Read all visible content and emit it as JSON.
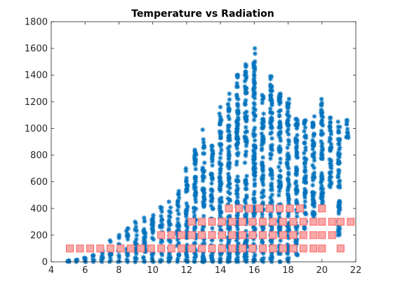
{
  "chart_data": {
    "type": "scatter",
    "title": "Temperature vs Radiation",
    "xlabel": "",
    "ylabel": "",
    "xlim": [
      4,
      22
    ],
    "ylim": [
      0,
      1800
    ],
    "x_ticks": [
      4,
      6,
      8,
      10,
      12,
      14,
      16,
      18,
      20,
      22
    ],
    "y_ticks": [
      0,
      200,
      400,
      600,
      800,
      1000,
      1200,
      1400,
      1600,
      1800
    ],
    "grid": false,
    "legend": "none",
    "series": [
      {
        "marker": "asterisk",
        "color": "#0072BD",
        "columns": [
          {
            "x": 5.0,
            "y_min": 0,
            "y_max": 10
          },
          {
            "x": 5.5,
            "y_min": 0,
            "y_max": 15
          },
          {
            "x": 6.0,
            "y_min": 0,
            "y_max": 30
          },
          {
            "x": 6.5,
            "y_min": 0,
            "y_max": 50
          },
          {
            "x": 7.0,
            "y_min": 0,
            "y_max": 80
          },
          {
            "x": 7.5,
            "y_min": 0,
            "y_max": 160
          },
          {
            "x": 8.0,
            "y_min": 0,
            "y_max": 200
          },
          {
            "x": 8.5,
            "y_min": 0,
            "y_max": 250
          },
          {
            "x": 9.0,
            "y_min": 0,
            "y_max": 300
          },
          {
            "x": 9.5,
            "y_min": 0,
            "y_max": 330
          },
          {
            "x": 10.0,
            "y_min": 0,
            "y_max": 350
          },
          {
            "x": 10.5,
            "y_min": 0,
            "y_max": 410
          },
          {
            "x": 11.0,
            "y_min": 0,
            "y_max": 450
          },
          {
            "x": 11.5,
            "y_min": 0,
            "y_max": 530
          },
          {
            "x": 12.0,
            "y_min": 0,
            "y_max": 700
          },
          {
            "x": 12.5,
            "y_min": 0,
            "y_max": 840
          },
          {
            "x": 13.0,
            "y_min": 0,
            "y_max": 990
          },
          {
            "x": 13.5,
            "y_min": 0,
            "y_max": 870
          },
          {
            "x": 14.0,
            "y_min": 0,
            "y_max": 1160
          },
          {
            "x": 14.5,
            "y_min": 0,
            "y_max": 1260
          },
          {
            "x": 15.0,
            "y_min": 0,
            "y_max": 1400
          },
          {
            "x": 15.5,
            "y_min": 0,
            "y_max": 1480
          },
          {
            "x": 16.0,
            "y_min": 0,
            "y_max": 1600
          },
          {
            "x": 16.5,
            "y_min": 0,
            "y_max": 1250
          },
          {
            "x": 17.0,
            "y_min": 0,
            "y_max": 1390
          },
          {
            "x": 17.5,
            "y_min": 0,
            "y_max": 1260
          },
          {
            "x": 18.0,
            "y_min": 0,
            "y_max": 1220
          },
          {
            "x": 18.5,
            "y_min": 50,
            "y_max": 1070
          },
          {
            "x": 19.0,
            "y_min": 250,
            "y_max": 1060
          },
          {
            "x": 19.5,
            "y_min": 300,
            "y_max": 1090
          },
          {
            "x": 20.0,
            "y_min": 400,
            "y_max": 1220
          },
          {
            "x": 20.5,
            "y_min": 560,
            "y_max": 1080
          },
          {
            "x": 21.0,
            "y_min": 200,
            "y_max": 1050
          },
          {
            "x": 21.5,
            "y_min": 930,
            "y_max": 1060
          }
        ]
      },
      {
        "marker": "square",
        "color": "#FF6464",
        "fill": "#F7A8A8",
        "points": [
          [
            5.1,
            100
          ],
          [
            5.7,
            100
          ],
          [
            6.3,
            100
          ],
          [
            6.9,
            100
          ],
          [
            7.5,
            100
          ],
          [
            8.1,
            100
          ],
          [
            8.7,
            100
          ],
          [
            9.3,
            100
          ],
          [
            9.9,
            100
          ],
          [
            10.5,
            100
          ],
          [
            11.1,
            100
          ],
          [
            11.7,
            100
          ],
          [
            12.3,
            100
          ],
          [
            12.9,
            100
          ],
          [
            13.5,
            100
          ],
          [
            14.1,
            100
          ],
          [
            14.7,
            100
          ],
          [
            15.3,
            100
          ],
          [
            15.9,
            100
          ],
          [
            16.5,
            100
          ],
          [
            17.1,
            100
          ],
          [
            17.7,
            100
          ],
          [
            18.3,
            100
          ],
          [
            18.9,
            100
          ],
          [
            19.5,
            100
          ],
          [
            20.0,
            100
          ],
          [
            21.1,
            100
          ],
          [
            10.5,
            200
          ],
          [
            11.1,
            200
          ],
          [
            11.7,
            200
          ],
          [
            12.3,
            200
          ],
          [
            12.9,
            200
          ],
          [
            13.5,
            200
          ],
          [
            14.1,
            200
          ],
          [
            14.7,
            200
          ],
          [
            15.3,
            200
          ],
          [
            15.9,
            200
          ],
          [
            16.5,
            200
          ],
          [
            17.1,
            200
          ],
          [
            17.7,
            200
          ],
          [
            18.3,
            200
          ],
          [
            18.9,
            200
          ],
          [
            19.5,
            200
          ],
          [
            20.0,
            200
          ],
          [
            20.6,
            200
          ],
          [
            12.3,
            300
          ],
          [
            12.9,
            300
          ],
          [
            13.5,
            300
          ],
          [
            14.1,
            300
          ],
          [
            14.7,
            300
          ],
          [
            15.3,
            300
          ],
          [
            15.9,
            300
          ],
          [
            16.5,
            300
          ],
          [
            17.1,
            300
          ],
          [
            17.7,
            300
          ],
          [
            18.3,
            300
          ],
          [
            18.9,
            300
          ],
          [
            19.5,
            300
          ],
          [
            20.0,
            300
          ],
          [
            20.6,
            300
          ],
          [
            21.1,
            300
          ],
          [
            21.7,
            300
          ],
          [
            14.5,
            400
          ],
          [
            15.1,
            400
          ],
          [
            15.7,
            400
          ],
          [
            16.3,
            400
          ],
          [
            16.9,
            400
          ],
          [
            17.5,
            400
          ],
          [
            18.1,
            400
          ],
          [
            18.7,
            400
          ],
          [
            20.0,
            400
          ]
        ]
      }
    ]
  }
}
